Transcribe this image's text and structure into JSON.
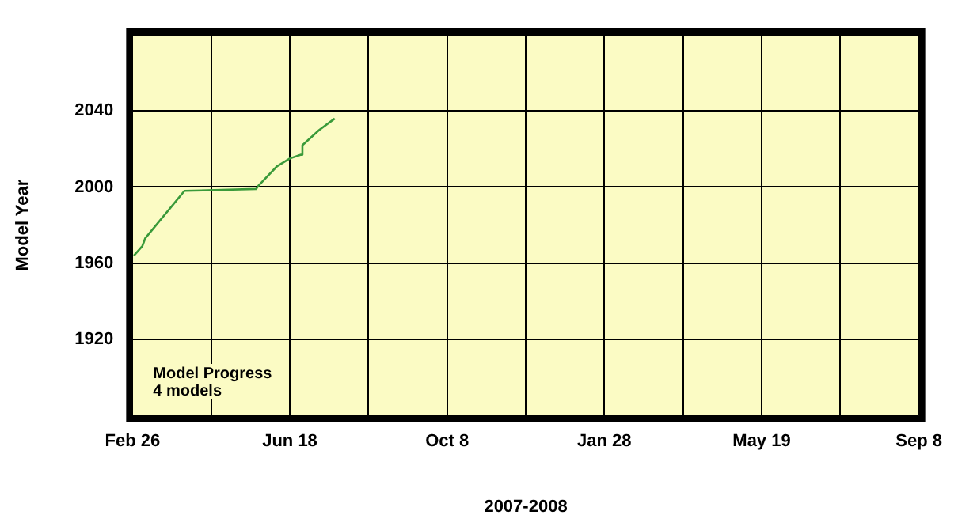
{
  "chart_data": {
    "type": "line",
    "xlabel": "2007-2008",
    "ylabel": "Model Year",
    "annotations": [
      "Model Progress",
      "4 models"
    ],
    "x": [
      "2007-02-27",
      "2007-03-05",
      "2007-03-07",
      "2007-04-04",
      "2007-05-25",
      "2007-05-27",
      "2007-06-09",
      "2007-06-18",
      "2007-06-26",
      "2007-06-27",
      "2007-07-09",
      "2007-07-20"
    ],
    "series": [
      {
        "color": "#3a9a3a",
        "values": [
          1964,
          1969,
          1973,
          1998,
          1999,
          2001,
          2011,
          2015,
          2017,
          2022,
          2030,
          2036
        ]
      }
    ],
    "xlim": [
      "2007-02-26",
      "2008-09-08"
    ],
    "xticks": [
      {
        "value": "2007-02-26",
        "label": "Feb 26"
      },
      {
        "value": "2007-04-23",
        "label": null
      },
      {
        "value": "2007-06-18",
        "label": "Jun 18"
      },
      {
        "value": "2007-08-13",
        "label": null
      },
      {
        "value": "2007-10-08",
        "label": "Oct 8"
      },
      {
        "value": "2007-12-03",
        "label": null
      },
      {
        "value": "2008-01-28",
        "label": "Jan 28"
      },
      {
        "value": "2008-03-24",
        "label": null
      },
      {
        "value": "2008-05-19",
        "label": "May 19"
      },
      {
        "value": "2008-07-14",
        "label": null
      },
      {
        "value": "2008-09-08",
        "label": "Sep 8"
      }
    ],
    "ylim": [
      1880,
      2080
    ],
    "yticks": [
      {
        "value": 1880,
        "label": null
      },
      1920,
      1960,
      2000,
      2040,
      {
        "value": 2080,
        "label": null
      }
    ],
    "grid": true,
    "legend": false,
    "marker": "none",
    "line_style": "solid"
  }
}
